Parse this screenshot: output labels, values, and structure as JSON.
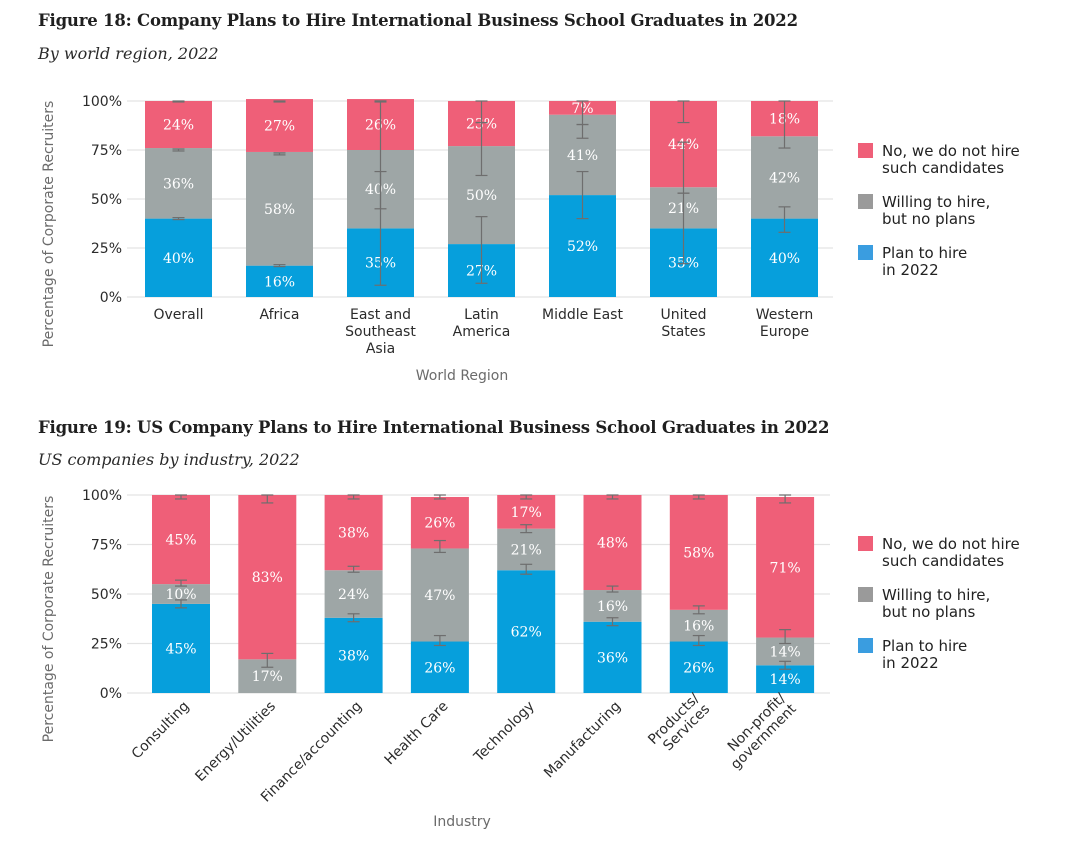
{
  "figures": [
    {
      "title": "Figure 18: Company Plans to Hire International Business School Graduates in 2022",
      "subtitle": "By world region, 2022"
    },
    {
      "title": "Figure 19: US Company Plans to Hire International Business School Graduates in 2022",
      "subtitle": "US companies by industry, 2022"
    }
  ],
  "colors": {
    "no_hire": "#ef5f78",
    "willing": "#9ea6a6",
    "plan": "#069fdc",
    "legend_willing": "#9a9a9a",
    "legend_plan": "#3a9de0",
    "grid": "#e3e3e3",
    "errorbar": "#6e6e6e"
  },
  "chart_data": [
    {
      "type": "bar",
      "stacked": true,
      "title": "Figure 18: Company Plans to Hire International Business School Graduates in 2022",
      "subtitle": "By world region, 2022",
      "xlabel": "World Region",
      "ylabel": "Percentage of Corporate Recruiters",
      "ylim": [
        0,
        100
      ],
      "yticks": [
        "0%",
        "25%",
        "50%",
        "75%",
        "100%"
      ],
      "grid": true,
      "legend_position": "right",
      "label_rotation": 0,
      "categories": [
        [
          "Overall"
        ],
        [
          "Africa"
        ],
        [
          "East and",
          "Southeast",
          "Asia"
        ],
        [
          "Latin",
          "America"
        ],
        [
          "Middle East"
        ],
        [
          "United",
          "States"
        ],
        [
          "Western",
          "Europe"
        ]
      ],
      "series": [
        {
          "name": "Plan to hire in 2022",
          "legend": [
            "Plan to hire",
            "in 2022"
          ],
          "color_key": "plan",
          "values": [
            40,
            16,
            35,
            27,
            52,
            35,
            40
          ]
        },
        {
          "name": "Willing to hire, but no plans",
          "legend": [
            "Willing to hire,",
            "but no plans"
          ],
          "color_key": "willing",
          "values": [
            36,
            58,
            40,
            50,
            41,
            21,
            42
          ]
        },
        {
          "name": "No, we do not hire such candidates",
          "legend": [
            "No, we do not hire",
            "such candidates"
          ],
          "color_key": "no_hire",
          "values": [
            24,
            27,
            26,
            23,
            7,
            44,
            18
          ]
        }
      ],
      "error_bars": [
        [
          [
            39.5,
            40.5
          ],
          [
            74.5,
            75.5
          ],
          [
            99.5,
            100
          ]
        ],
        [
          [
            15.5,
            16.5
          ],
          [
            72.5,
            73.5
          ],
          [
            99.5,
            100
          ]
        ],
        [
          [
            6,
            100
          ],
          [
            45,
            64
          ],
          [
            99.5,
            100
          ]
        ],
        [
          [
            7,
            41
          ],
          [
            62,
            89
          ],
          [
            89,
            100
          ]
        ],
        [
          [
            40,
            64
          ],
          [
            81,
            88
          ],
          [
            88,
            100
          ]
        ],
        [
          [
            17,
            53
          ],
          [
            53,
            79
          ],
          [
            89,
            100
          ]
        ],
        [
          [
            33,
            46
          ],
          [
            76,
            100
          ]
        ]
      ]
    },
    {
      "type": "bar",
      "stacked": true,
      "title": "Figure 19: US Company Plans to Hire International Business School Graduates in 2022",
      "subtitle": "US companies by industry, 2022",
      "xlabel": "Industry",
      "ylabel": "Percentage of Corporate Recruiters",
      "ylim": [
        0,
        100
      ],
      "yticks": [
        "0%",
        "25%",
        "50%",
        "75%",
        "100%"
      ],
      "grid": true,
      "legend_position": "right",
      "label_rotation": -45,
      "categories": [
        [
          "Consulting"
        ],
        [
          "Energy/Utilities"
        ],
        [
          "Finance/accounting"
        ],
        [
          "Health Care"
        ],
        [
          "Technology"
        ],
        [
          "Manufacturing"
        ],
        [
          "Products/",
          "Services"
        ],
        [
          "Non-profit/",
          "government"
        ]
      ],
      "series": [
        {
          "name": "Plan to hire in 2022",
          "legend": [
            "Plan to hire",
            "in 2022"
          ],
          "color_key": "plan",
          "values": [
            45,
            0,
            38,
            26,
            62,
            36,
            26,
            14
          ]
        },
        {
          "name": "Willing to hire, but no plans",
          "legend": [
            "Willing to hire,",
            "but no plans"
          ],
          "color_key": "willing",
          "values": [
            10,
            17,
            24,
            47,
            21,
            16,
            16,
            14
          ]
        },
        {
          "name": "No, we do not hire such candidates",
          "legend": [
            "No, we do not hire",
            "such candidates"
          ],
          "color_key": "no_hire",
          "values": [
            45,
            83,
            38,
            26,
            17,
            48,
            58,
            71
          ]
        }
      ],
      "error_bars": [
        [
          [
            43,
            47
          ],
          [
            54,
            57
          ],
          [
            98,
            100
          ]
        ],
        [
          [
            13,
            20
          ],
          [
            96,
            100
          ]
        ],
        [
          [
            36,
            40
          ],
          [
            61,
            64
          ],
          [
            98,
            100
          ]
        ],
        [
          [
            24,
            29
          ],
          [
            71,
            77
          ],
          [
            98,
            100
          ]
        ],
        [
          [
            60,
            65
          ],
          [
            81,
            85
          ],
          [
            98,
            100
          ]
        ],
        [
          [
            34,
            38
          ],
          [
            51,
            54
          ],
          [
            98,
            100
          ]
        ],
        [
          [
            24,
            29
          ],
          [
            40,
            44
          ],
          [
            98,
            100
          ]
        ],
        [
          [
            12,
            16
          ],
          [
            25,
            32
          ],
          [
            96,
            100
          ]
        ]
      ]
    }
  ]
}
